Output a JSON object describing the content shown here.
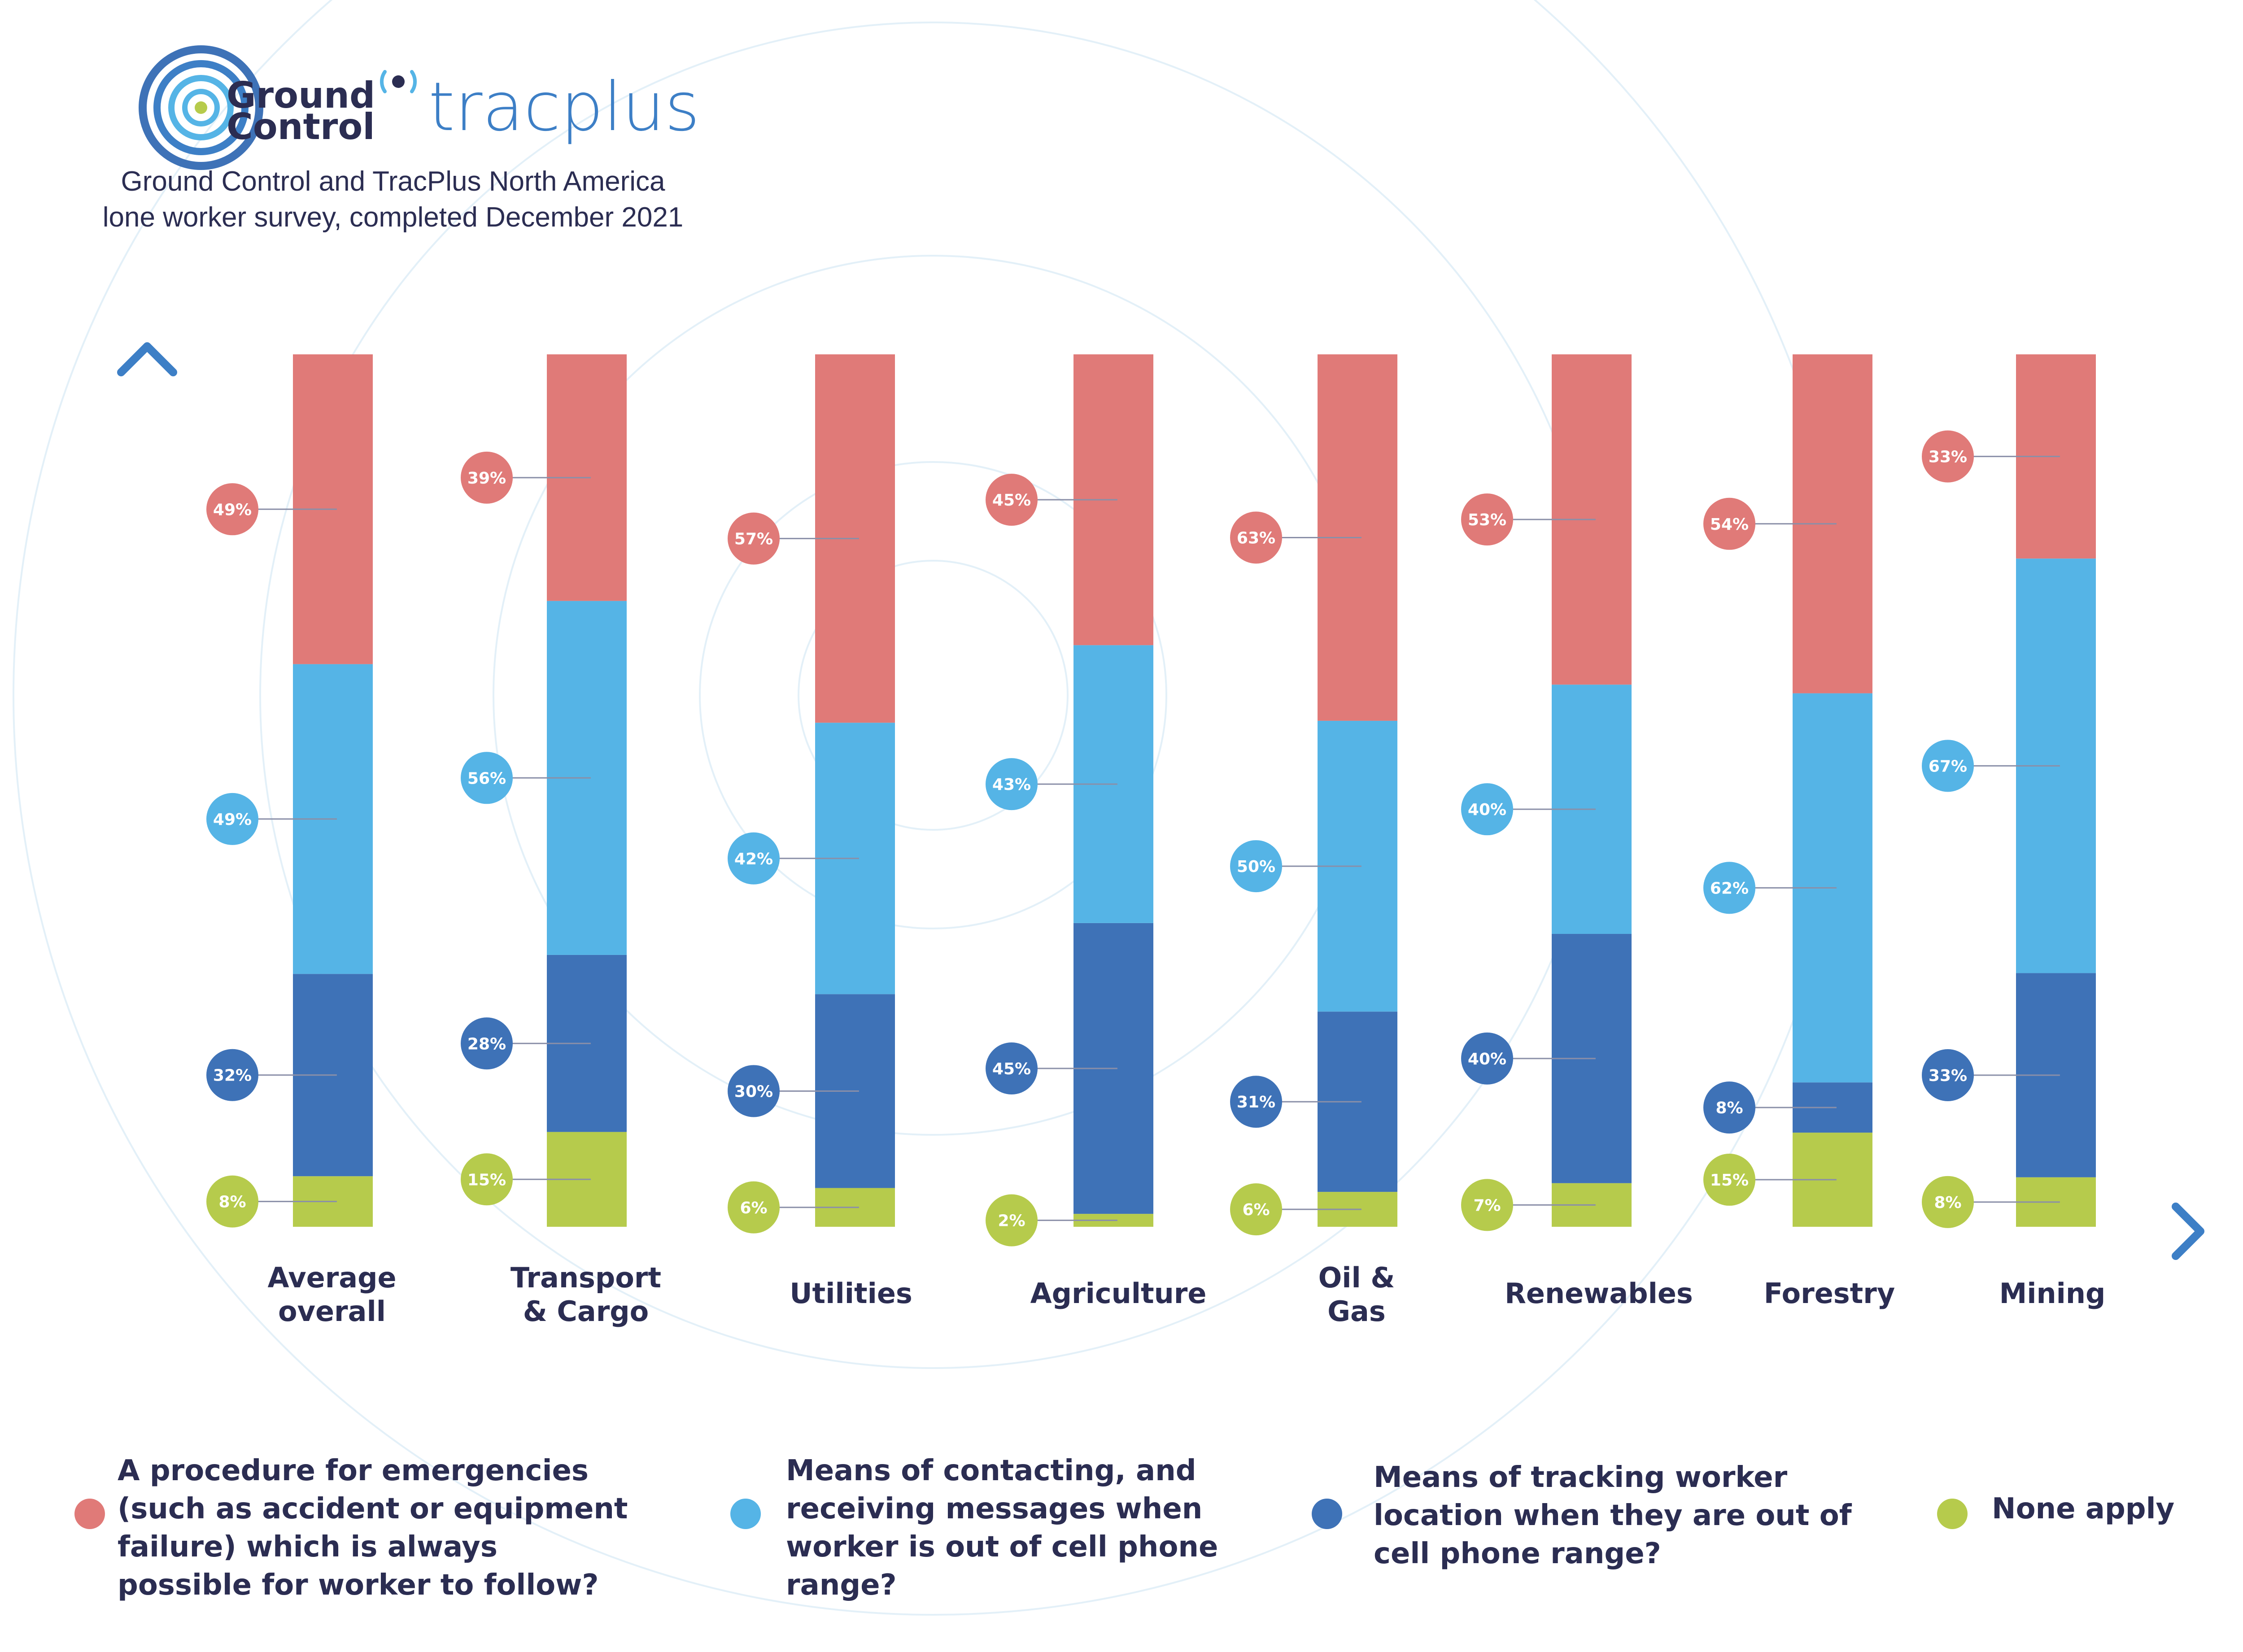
{
  "brand": {
    "ground_control": "Ground Control",
    "ground_line1": "Ground",
    "ground_line2": "Control",
    "tracplus": "tracplus",
    "icon": "concentric-rings-logo-icon"
  },
  "subtitle": {
    "line1": "Ground Control and TracPlus North America",
    "line2": "lone worker survey, completed December 2021"
  },
  "colors": {
    "procedure": "#e07a78",
    "contacting": "#55b4e6",
    "tracking": "#3e72b7",
    "none": "#b6cb4c",
    "axis_top": "#3d7fc6",
    "axis_bottom": "#2b2d52",
    "text": "#2b2d52",
    "rings": "#e3f0f8"
  },
  "chart_data": {
    "type": "bar",
    "stacked": true,
    "title": "",
    "xlabel": "",
    "ylabel": "",
    "categories": [
      [
        "Average",
        "overall"
      ],
      [
        "Transport",
        "& Cargo"
      ],
      [
        "Utilities"
      ],
      [
        "Agriculture"
      ],
      [
        "Oil &",
        "Gas"
      ],
      [
        "Renewables"
      ],
      [
        "Forestry"
      ],
      [
        "Mining"
      ]
    ],
    "series": [
      {
        "key": "none",
        "name": "None apply",
        "values": [
          8,
          15,
          6,
          2,
          6,
          7,
          15,
          8
        ]
      },
      {
        "key": "tracking",
        "name": "Means of tracking worker location when they are out of cell phone range?",
        "values": [
          32,
          28,
          30,
          45,
          31,
          40,
          8,
          33
        ]
      },
      {
        "key": "contacting",
        "name": "Means of contacting, and receiving messages when worker is out of cell phone range?",
        "values": [
          49,
          56,
          42,
          43,
          50,
          40,
          62,
          67
        ]
      },
      {
        "key": "procedure",
        "name": "A procedure for emergencies (such as accident or equipment failure) which is always possible for worker to follow?",
        "values": [
          49,
          39,
          57,
          45,
          63,
          53,
          54,
          33
        ]
      }
    ],
    "label_suffix": "%",
    "grid": false,
    "legend": "bottom"
  },
  "legend": [
    {
      "key": "procedure",
      "lines": [
        "A procedure for emergencies",
        "(such as accident or equipment",
        "failure) which is always",
        "possible for worker to follow?"
      ]
    },
    {
      "key": "contacting",
      "lines": [
        "Means of contacting, and",
        "receiving messages when",
        "worker is out of cell phone",
        "range?"
      ]
    },
    {
      "key": "tracking",
      "lines": [
        "Means of tracking worker",
        "location when they are out of",
        "cell phone range?"
      ]
    },
    {
      "key": "none",
      "lines": [
        "None apply"
      ]
    }
  ]
}
